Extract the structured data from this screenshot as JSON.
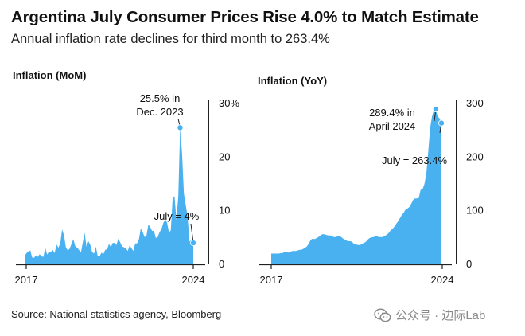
{
  "header": {
    "title": "Argentina July Consumer Prices Rise 4.0% to Match Estimate",
    "subtitle": "Annual inflation rate declines for third month to 263.4%"
  },
  "footer": {
    "source": "Source: National statistics agency, Bloomberg",
    "watermark": "公众号 · 边际Lab"
  },
  "colors": {
    "fill": "#4ab1f0",
    "axis": "#222222",
    "text": "#111111"
  },
  "chart_data": [
    {
      "type": "area",
      "title": "Inflation (MoM)",
      "unit": "%",
      "x_start": "2017-01",
      "x_end": "2024-07",
      "xticks": [
        "2017",
        "2024"
      ],
      "yticks": [
        "30%",
        "20",
        "10",
        "0"
      ],
      "ytick_values": [
        30,
        20,
        10,
        0
      ],
      "ylim": [
        0,
        30
      ],
      "values": [
        1.6,
        2.1,
        2.4,
        2.6,
        1.3,
        1.2,
        1.7,
        1.4,
        1.9,
        1.5,
        1.4,
        3.1,
        1.8,
        2.4,
        2.3,
        2.7,
        2.1,
        3.7,
        3.1,
        3.9,
        6.5,
        5.4,
        3.2,
        2.6,
        2.9,
        3.8,
        4.7,
        3.4,
        3.1,
        2.7,
        2.2,
        4.0,
        5.9,
        3.3,
        4.3,
        3.7,
        2.3,
        2.0,
        3.3,
        1.5,
        1.5,
        2.2,
        1.9,
        2.7,
        2.8,
        3.8,
        3.2,
        4.0,
        4.0,
        3.6,
        4.8,
        4.1,
        3.3,
        3.2,
        3.0,
        2.5,
        3.5,
        3.0,
        2.5,
        3.9,
        3.9,
        4.7,
        6.7,
        6.0,
        5.1,
        5.3,
        7.4,
        7.0,
        6.2,
        6.3,
        4.9,
        5.1,
        6.0,
        6.6,
        7.7,
        8.4,
        7.8,
        6.0,
        6.3,
        12.4,
        12.7,
        8.3,
        12.8,
        25.5,
        20.6,
        13.2,
        11.0,
        8.8,
        4.2,
        4.6,
        4.0
      ],
      "annotations": [
        {
          "label_lines": [
            "25.5% in",
            "Dec. 2023"
          ],
          "date": "2023-12",
          "value": 25.5
        },
        {
          "label_lines": [
            "July = 4%"
          ],
          "date": "2024-07",
          "value": 4.0
        }
      ]
    },
    {
      "type": "area",
      "title": "Inflation (YoY)",
      "unit": "%",
      "x_start": "2017-01",
      "x_end": "2024-07",
      "xticks": [
        "2017",
        "2024"
      ],
      "yticks": [
        "300",
        "200",
        "100",
        "0"
      ],
      "ytick_values": [
        300,
        200,
        100,
        0
      ],
      "ylim": [
        0,
        300
      ],
      "values": [
        20,
        20,
        20,
        20,
        20,
        21,
        21,
        23,
        23,
        22,
        23,
        25,
        25,
        25,
        26,
        27,
        27,
        29,
        31,
        34,
        40,
        46,
        48,
        47,
        49,
        51,
        54,
        56,
        56,
        55,
        54,
        54,
        53,
        51,
        51,
        52,
        53,
        51,
        48,
        46,
        44,
        43,
        43,
        41,
        37,
        37,
        36,
        36,
        38,
        40,
        42,
        46,
        49,
        50,
        51,
        52,
        52,
        51,
        51,
        51,
        53,
        55,
        58,
        63,
        66,
        70,
        75,
        80,
        86,
        92,
        96,
        102,
        104,
        107,
        113,
        120,
        123,
        123,
        124,
        139,
        140,
        150,
        170,
        211,
        254,
        276,
        288,
        289,
        276,
        272,
        263.4
      ],
      "annotations": [
        {
          "label_lines": [
            "289.4% in",
            "April 2024"
          ],
          "date": "2024-04",
          "value": 289.4
        },
        {
          "label_lines": [
            "July = 263.4%"
          ],
          "date": "2024-07",
          "value": 263.4
        }
      ]
    }
  ]
}
